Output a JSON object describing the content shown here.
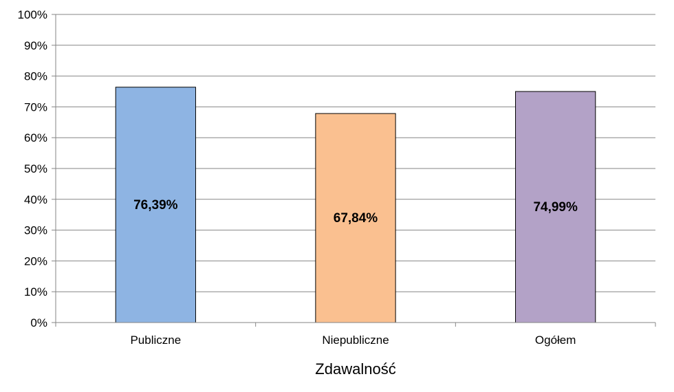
{
  "chart_data": {
    "type": "bar",
    "title": "",
    "xlabel": "Zdawalność",
    "ylabel": "",
    "categories": [
      "Publiczne",
      "Niepubliczne",
      "Ogółem"
    ],
    "values": [
      76.39,
      67.84,
      74.99
    ],
    "value_labels": [
      "76,39%",
      "67,84%",
      "74,99%"
    ],
    "ylim": [
      0,
      100
    ],
    "yticks": [
      0,
      10,
      20,
      30,
      40,
      50,
      60,
      70,
      80,
      90,
      100
    ],
    "ytick_labels": [
      "0%",
      "10%",
      "20%",
      "30%",
      "40%",
      "50%",
      "60%",
      "70%",
      "80%",
      "90%",
      "100%"
    ],
    "bar_colors": [
      "#8EB4E3",
      "#FAC090",
      "#B3A2C7"
    ],
    "grid": true,
    "legend": "none"
  }
}
